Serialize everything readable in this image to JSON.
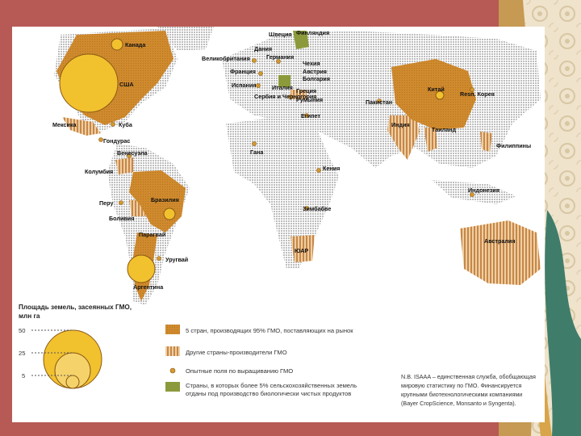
{
  "colors": {
    "frame": "#b75a55",
    "gmo_major": "#cf8a2e",
    "gmo_other": "#d9a066",
    "field_trials": "#d59a2f",
    "organic": "#8c9a3b",
    "circle_fill": "#f2c12e",
    "land": "#c8c8c8"
  },
  "labels": {
    "canada": "Канада",
    "usa": "США",
    "mexico": "Мексика",
    "cuba": "Куба",
    "honduras": "Гондурас",
    "venezuela": "Венесуэла",
    "colombia": "Колумбия",
    "peru": "Перу",
    "bolivia": "Боливия",
    "brazil": "Бразилия",
    "paraguay": "Парагвай",
    "uruguay": "Уругвай",
    "argentina": "Аргентина",
    "uk": "Великобритания",
    "france": "Франция",
    "sweden": "Швеция",
    "finland": "Финляндия",
    "denmark": "Дания",
    "germany": "Германия",
    "czech": "Чехия",
    "austria": "Австрия",
    "bulgaria": "Болгария",
    "spain": "Испания",
    "italy": "Италия",
    "greece": "Греция",
    "serbia": "Сербия и Черногория",
    "romania": "Румыния",
    "egypt": "Египет",
    "ghana": "Гана",
    "kenya": "Кения",
    "zimbabwe": "Зимбабве",
    "sar": "ЮАР",
    "pakistan": "Пакистан",
    "india": "Индия",
    "china": "Китай",
    "korea": "Resп. Корея",
    "thailand": "Таиланд",
    "philippines": "Филиппины",
    "indonesia": "Индонезия",
    "australia": "Австралия"
  },
  "scale": {
    "title": "Площадь земель, засеянных ГМО,",
    "unit": "млн га",
    "ticks": [
      "50",
      "25",
      "5"
    ]
  },
  "legend": [
    "5 стран, производящих 95% ГМО, поставляющих на рынок",
    "Другие страны-производители ГМО",
    "Опытные поля по выращиванию ГМО",
    "Страны, в которых более 5% сельскохозяйственных земель отданы под производство биологически чистых продуктов"
  ],
  "legend_line4b": "отданы под производство биологически чистых продуктов",
  "note": {
    "lines": [
      "N.B. ISAAA – единственная служба, обобщающая",
      "мировую статистику по ГМО. Финансируется",
      "крупными биотехнологическими компаниями",
      "(Bayer CropScience, Monsanto и Syngenta)."
    ]
  }
}
